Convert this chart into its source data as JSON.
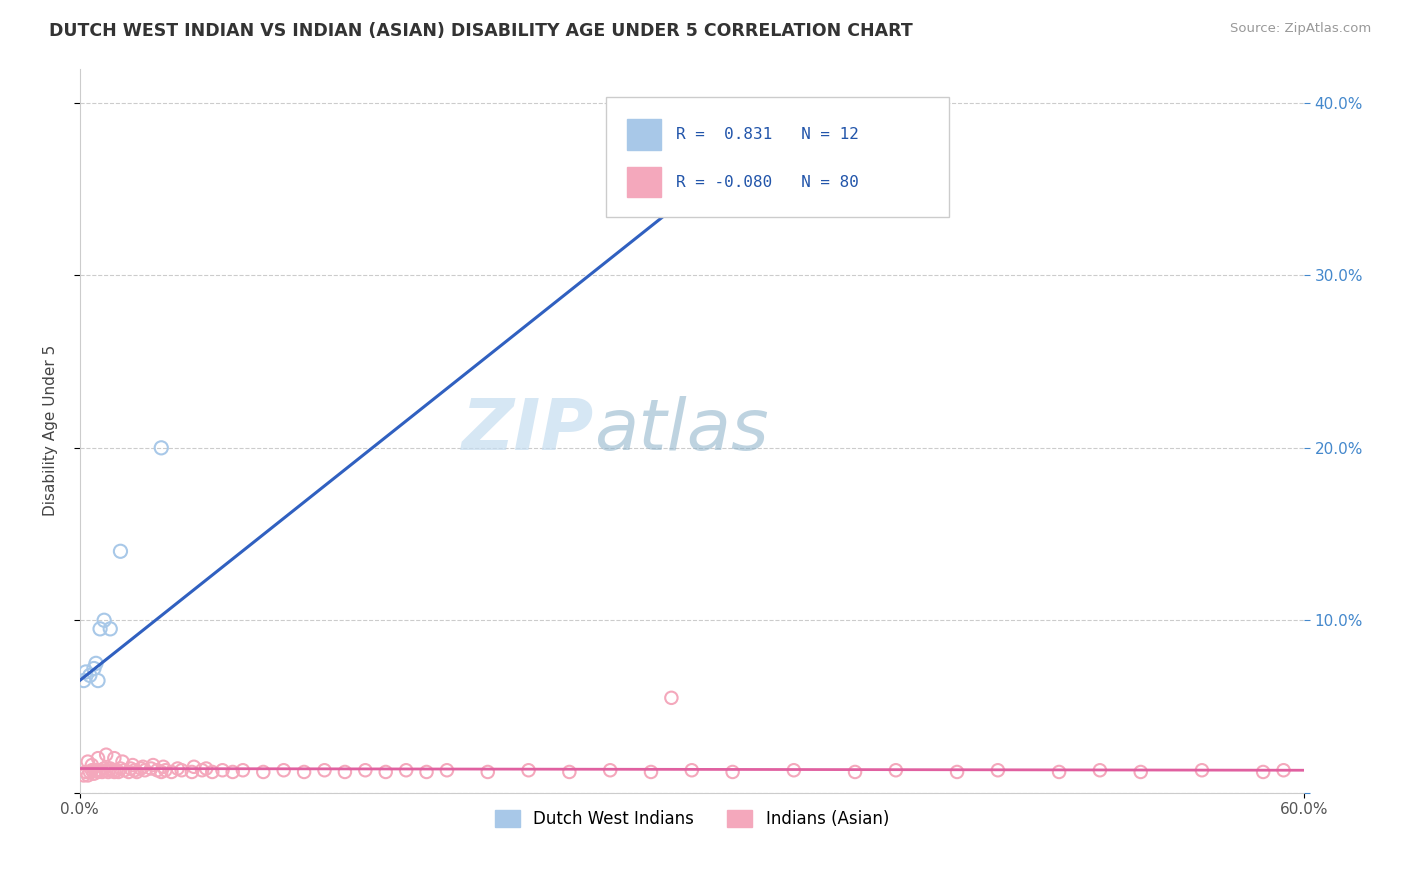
{
  "title": "DUTCH WEST INDIAN VS INDIAN (ASIAN) DISABILITY AGE UNDER 5 CORRELATION CHART",
  "source": "Source: ZipAtlas.com",
  "ylabel": "Disability Age Under 5",
  "xlim": [
    0.0,
    0.6
  ],
  "ylim": [
    0.0,
    0.42
  ],
  "xtick_vals": [
    0.0,
    0.6
  ],
  "xtick_labels": [
    "0.0%",
    "60.0%"
  ],
  "ytick_vals": [
    0.0,
    0.1,
    0.2,
    0.3,
    0.4
  ],
  "ytick_labels_left": [
    "",
    "",
    "",
    "",
    ""
  ],
  "ytick_labels_right": [
    "",
    "10.0%",
    "20.0%",
    "30.0%",
    "40.0%"
  ],
  "legend_R_blue": "0.831",
  "legend_N_blue": "12",
  "legend_R_pink": "-0.080",
  "legend_N_pink": "80",
  "legend_label_blue": "Dutch West Indians",
  "legend_label_pink": "Indians (Asian)",
  "blue_color": "#a8c8e8",
  "pink_color": "#f4a8bc",
  "blue_line_color": "#3060c0",
  "pink_line_color": "#e060a0",
  "watermark_zip": "ZIP",
  "watermark_atlas": "atlas",
  "blue_scatter_x": [
    0.002,
    0.003,
    0.005,
    0.007,
    0.008,
    0.009,
    0.01,
    0.012,
    0.015,
    0.02,
    0.04,
    0.34
  ],
  "blue_scatter_y": [
    0.065,
    0.07,
    0.068,
    0.072,
    0.075,
    0.065,
    0.095,
    0.1,
    0.095,
    0.14,
    0.2,
    0.38
  ],
  "pink_scatter_x": [
    0.002,
    0.003,
    0.004,
    0.005,
    0.006,
    0.007,
    0.008,
    0.009,
    0.01,
    0.011,
    0.012,
    0.013,
    0.014,
    0.015,
    0.016,
    0.017,
    0.018,
    0.019,
    0.02,
    0.022,
    0.024,
    0.025,
    0.027,
    0.028,
    0.03,
    0.032,
    0.035,
    0.038,
    0.04,
    0.042,
    0.045,
    0.05,
    0.055,
    0.06,
    0.065,
    0.07,
    0.075,
    0.08,
    0.09,
    0.1,
    0.11,
    0.12,
    0.13,
    0.14,
    0.15,
    0.16,
    0.17,
    0.18,
    0.2,
    0.22,
    0.24,
    0.26,
    0.28,
    0.3,
    0.32,
    0.35,
    0.38,
    0.4,
    0.43,
    0.45,
    0.48,
    0.5,
    0.52,
    0.55,
    0.58,
    0.59,
    0.004,
    0.006,
    0.009,
    0.013,
    0.017,
    0.021,
    0.026,
    0.031,
    0.036,
    0.041,
    0.048,
    0.056,
    0.062,
    0.29
  ],
  "pink_scatter_y": [
    0.01,
    0.012,
    0.01,
    0.012,
    0.013,
    0.011,
    0.013,
    0.012,
    0.013,
    0.012,
    0.014,
    0.013,
    0.012,
    0.014,
    0.013,
    0.012,
    0.013,
    0.012,
    0.014,
    0.013,
    0.012,
    0.014,
    0.013,
    0.012,
    0.014,
    0.013,
    0.014,
    0.013,
    0.012,
    0.013,
    0.012,
    0.013,
    0.012,
    0.013,
    0.012,
    0.013,
    0.012,
    0.013,
    0.012,
    0.013,
    0.012,
    0.013,
    0.012,
    0.013,
    0.012,
    0.013,
    0.012,
    0.013,
    0.012,
    0.013,
    0.012,
    0.013,
    0.012,
    0.013,
    0.012,
    0.013,
    0.012,
    0.013,
    0.012,
    0.013,
    0.012,
    0.013,
    0.012,
    0.013,
    0.012,
    0.013,
    0.018,
    0.016,
    0.02,
    0.022,
    0.02,
    0.018,
    0.016,
    0.015,
    0.016,
    0.015,
    0.014,
    0.015,
    0.014,
    0.055
  ],
  "blue_line_x": [
    0.0,
    0.34
  ],
  "blue_line_y": [
    0.065,
    0.385
  ],
  "pink_line_x": [
    0.0,
    0.6
  ],
  "pink_line_y": [
    0.014,
    0.013
  ]
}
